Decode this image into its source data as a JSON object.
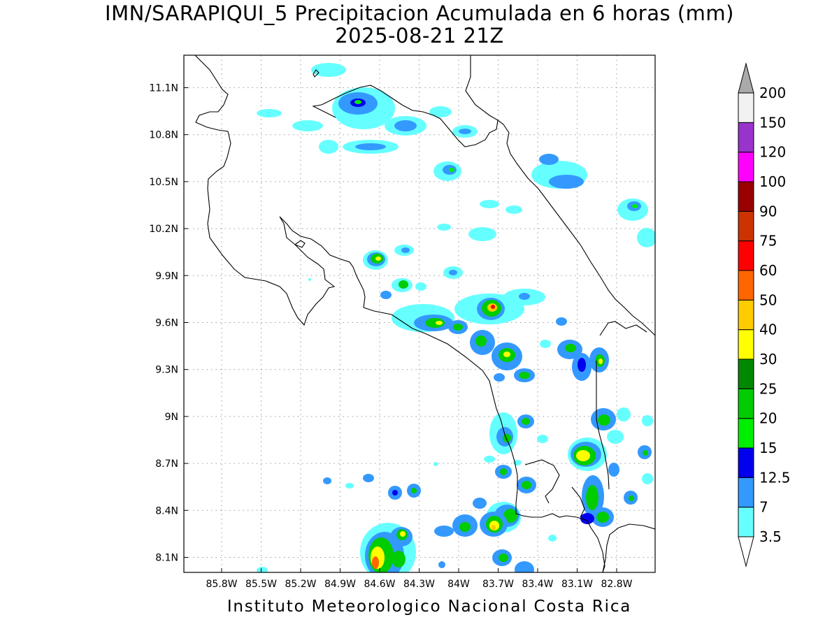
{
  "title": {
    "line1": "IMN/SARAPIQUI_5 Precipitacion Acumulada en 6 horas (mm)",
    "line2": "2025-08-21 21Z"
  },
  "footer": "Instituto Meteorologico Nacional Costa Rica",
  "map": {
    "variable": "Precipitacion Acumulada en 6 horas",
    "units": "mm",
    "lon_range": [
      -86.0,
      -82.5
    ],
    "lat_range": [
      8.0,
      11.3
    ],
    "lon_ticks": [
      "85.8W",
      "85.5W",
      "85.2W",
      "84.9W",
      "84.6W",
      "84.3W",
      "84W",
      "83.7W",
      "83.4W",
      "83.1W",
      "82.8W"
    ],
    "lat_ticks": [
      "8.1N",
      "8.4N",
      "8.7N",
      "9N",
      "9.3N",
      "9.6N",
      "9.9N",
      "10.2N",
      "10.5N",
      "10.8N",
      "11.1N"
    ],
    "gridlines": true
  },
  "colorbar": {
    "levels": [
      "3.5",
      "7",
      "12.5",
      "15",
      "20",
      "25",
      "30",
      "40",
      "50",
      "60",
      "75",
      "90",
      "100",
      "120",
      "150",
      "200"
    ],
    "colors": [
      "#66ffff",
      "#3399ff",
      "#0000ee",
      "#00ee00",
      "#00cc00",
      "#008800",
      "#ffff00",
      "#ffcc00",
      "#ff6600",
      "#ff0000",
      "#cc3300",
      "#990000",
      "#ff00ff",
      "#9933cc",
      "#f2f2f2",
      "#aaaaaa"
    ]
  },
  "colors": {
    "coastline": "#000000",
    "grid": "#999999",
    "frame": "#000000"
  }
}
